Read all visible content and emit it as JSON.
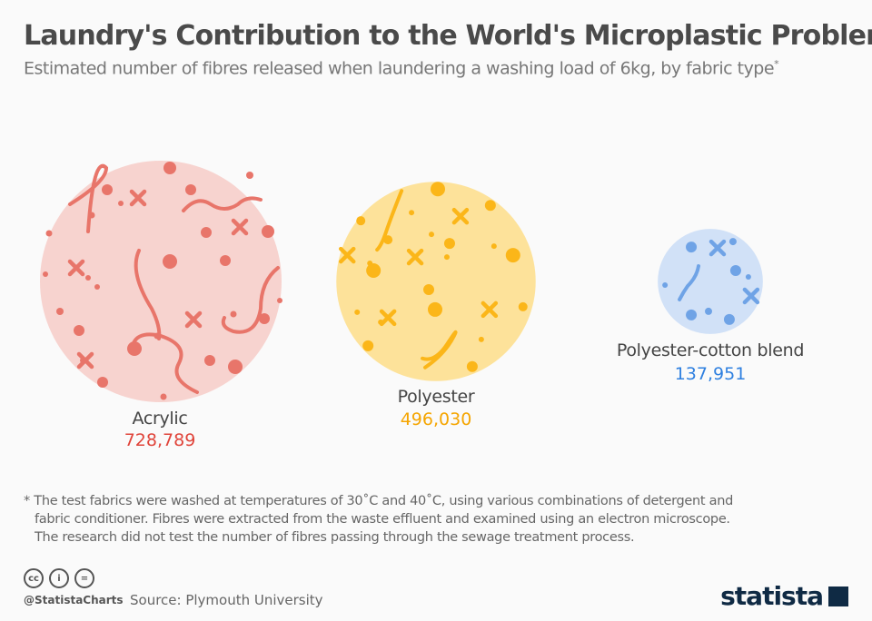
{
  "chart_data": {
    "type": "bubble",
    "title": "Laundry's Contribution to the World's Microplastic Problem",
    "subtitle": "Estimated number of fibres released when laundering a washing load of 6kg, by fabric type",
    "subtitle_marker": "*",
    "categories": [
      "Acrylic",
      "Polyester",
      "Polyester-cotton blend"
    ],
    "values": [
      728789,
      496030,
      137951
    ],
    "value_labels": [
      "728,789",
      "496,030",
      "137,951"
    ],
    "colors": {
      "fill": [
        "#f7d3cf",
        "#fde29a",
        "#d1e1f7"
      ],
      "mark": [
        "#e8756a",
        "#fbb619",
        "#6fa3e6"
      ],
      "value": [
        "#e0443a",
        "#f5a500",
        "#2f80e0"
      ]
    }
  },
  "footnote": [
    "* The test fabrics were washed at temperatures of 30˚C and 40˚C, using various combinations of detergent and",
    "fabric conditioner. Fibres were extracted from the waste effluent and examined using an electron microscope.",
    "The research did not test the number of fibres passing through the sewage treatment process."
  ],
  "footer": {
    "handle": "@StatistaCharts",
    "source": "Source: Plymouth University",
    "logo": "statista",
    "license_icons": [
      "cc",
      "i",
      "="
    ]
  }
}
